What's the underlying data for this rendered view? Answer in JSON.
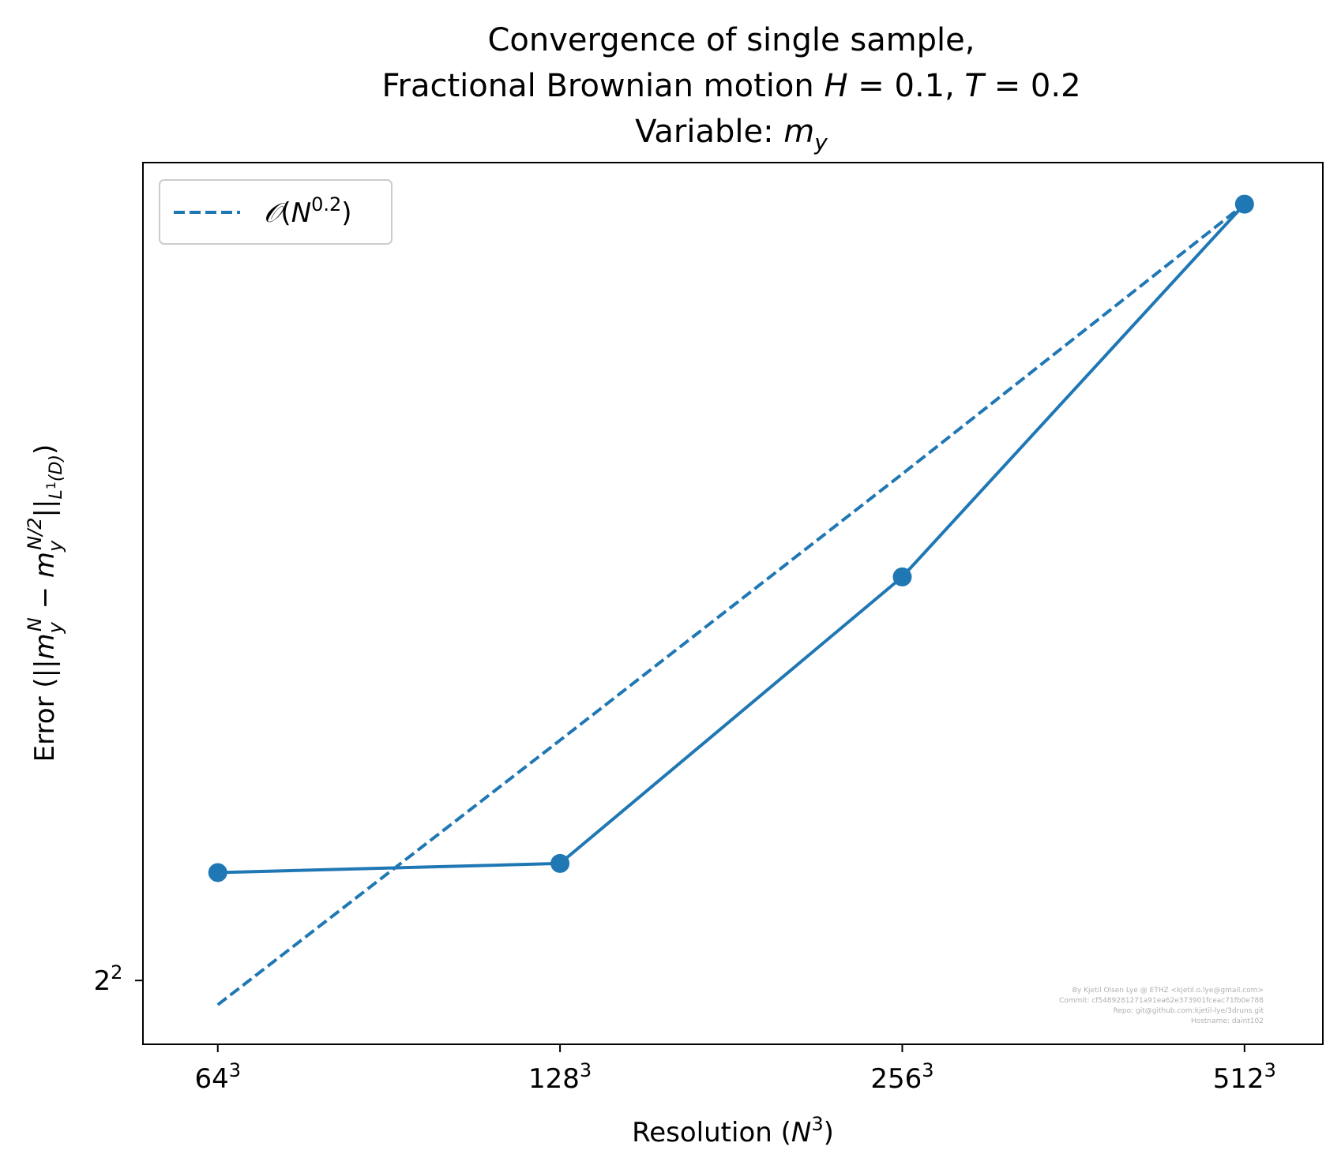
{
  "chart_data": {
    "type": "line",
    "title_lines": [
      "Convergence of single sample,",
      "Fractional Brownian motion H = 0.1, T = 0.2",
      "Variable: m_y"
    ],
    "xlabel": "Resolution (N^3)",
    "ylabel": "Error (||m_y^N - m_y^{N/2}||_{L^1(D)})",
    "x_scale": "log2",
    "y_scale": "log2",
    "x": [
      64,
      128,
      256,
      512
    ],
    "x_tick_labels": [
      "64^3",
      "128^3",
      "256^3",
      "512^3"
    ],
    "y_ticks": [
      4
    ],
    "y_tick_labels": [
      "2^2"
    ],
    "xlim": [
      55,
      600
    ],
    "ylim": [
      3.87,
      6.11
    ],
    "series": [
      {
        "values": [
          4.23,
          4.25,
          4.93,
          5.98
        ],
        "style": "solid",
        "marker": "circle",
        "color": "#1f77b4"
      },
      {
        "name": "O(N^{0.2})",
        "values": [
          3.95,
          4.53,
          5.2,
          5.98
        ],
        "style": "dashed",
        "marker": "none",
        "color": "#1f77b4"
      }
    ],
    "legend": {
      "position": "top-left",
      "entries": [
        "O(N^{0.2})"
      ]
    },
    "grid": false,
    "watermark": [
      "By Kjetil Olsen Lye @ ETHZ <kjetil.o.lye@gmail.com>",
      "Commit: cf5489281271a91ea62e373901fceac71fb0e788",
      "Repo: git@github.com:kjetil-lye/3druns.git",
      "Hostname: daint102"
    ]
  }
}
